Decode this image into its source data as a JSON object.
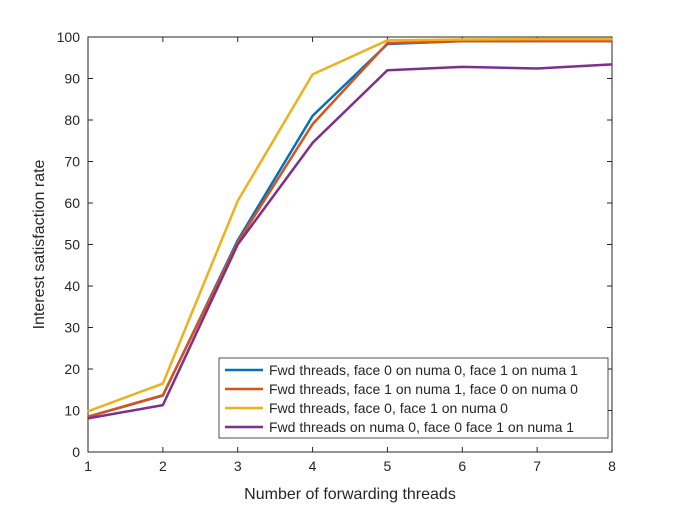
{
  "chart_data": {
    "type": "line",
    "title": "",
    "xlabel": "Number of forwarding threads",
    "ylabel": "Interest satisfaction rate",
    "xlim": [
      1,
      8
    ],
    "ylim": [
      0,
      100
    ],
    "x": [
      1,
      2,
      3,
      4,
      5,
      6,
      7,
      8
    ],
    "xticks": [
      "1",
      "2",
      "3",
      "4",
      "5",
      "6",
      "7",
      "8"
    ],
    "yticks": [
      "0",
      "10",
      "20",
      "30",
      "40",
      "50",
      "60",
      "70",
      "80",
      "90",
      "100"
    ],
    "grid": false,
    "legend_position": "bottom-right",
    "series": [
      {
        "name": "Fwd threads, face 0 on numa 0, face 1 on numa 1",
        "color": "#0072BD",
        "values": [
          8.5,
          13.6,
          51.0,
          81.0,
          98.3,
          99.0,
          99.0,
          99.0
        ]
      },
      {
        "name": "Fwd threads, face 1 on numa 1, face 0 on numa 0",
        "color": "#D95319",
        "values": [
          8.5,
          13.7,
          50.5,
          79.0,
          98.5,
          99.0,
          99.0,
          99.0
        ]
      },
      {
        "name": "Fwd threads, face 0, face 1 on numa 0",
        "color": "#EDB120",
        "values": [
          9.8,
          16.5,
          60.5,
          91.0,
          99.2,
          99.4,
          99.5,
          99.5
        ]
      },
      {
        "name": "Fwd threads on numa 0, face 0 face 1 on numa 1",
        "color": "#7E2F8E",
        "values": [
          8.1,
          11.3,
          50.0,
          74.5,
          92.0,
          92.8,
          92.4,
          93.4
        ]
      }
    ]
  }
}
